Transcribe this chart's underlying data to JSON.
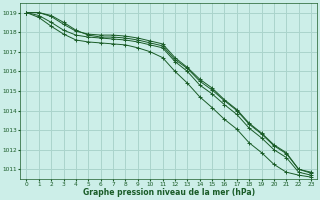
{
  "title": "Graphe pression niveau de la mer (hPa)",
  "background_color": "#cceee8",
  "grid_color": "#aad4cc",
  "line_color": "#1a5c28",
  "xlim": [
    -0.5,
    23.5
  ],
  "ylim": [
    1010.5,
    1019.5
  ],
  "xticks": [
    0,
    1,
    2,
    3,
    4,
    5,
    6,
    7,
    8,
    9,
    10,
    11,
    12,
    13,
    14,
    15,
    16,
    17,
    18,
    19,
    20,
    21,
    22,
    23
  ],
  "yticks": [
    1011,
    1012,
    1013,
    1014,
    1015,
    1016,
    1017,
    1018,
    1019
  ],
  "series": [
    [
      1019.0,
      1019.0,
      1018.85,
      1018.5,
      1018.1,
      1017.85,
      1017.75,
      1017.75,
      1017.7,
      1017.6,
      1017.45,
      1017.3,
      1016.6,
      1016.15,
      1015.5,
      1015.05,
      1014.5,
      1014.0,
      1013.3,
      1012.8,
      1012.2,
      1011.8,
      1011.0,
      1010.8
    ],
    [
      1019.0,
      1019.0,
      1018.8,
      1018.4,
      1018.05,
      1017.9,
      1017.85,
      1017.85,
      1017.8,
      1017.7,
      1017.55,
      1017.4,
      1016.7,
      1016.2,
      1015.6,
      1015.15,
      1014.55,
      1014.05,
      1013.35,
      1012.85,
      1012.25,
      1011.85,
      1011.0,
      1010.85
    ],
    [
      1019.0,
      1018.85,
      1018.5,
      1018.1,
      1017.85,
      1017.75,
      1017.7,
      1017.65,
      1017.6,
      1017.5,
      1017.35,
      1017.2,
      1016.5,
      1016.0,
      1015.3,
      1014.85,
      1014.3,
      1013.8,
      1013.1,
      1012.6,
      1012.0,
      1011.6,
      1010.85,
      1010.7
    ],
    [
      1019.0,
      1018.75,
      1018.3,
      1017.9,
      1017.6,
      1017.5,
      1017.45,
      1017.4,
      1017.35,
      1017.2,
      1017.0,
      1016.7,
      1016.0,
      1015.4,
      1014.7,
      1014.15,
      1013.55,
      1013.05,
      1012.35,
      1011.85,
      1011.25,
      1010.85,
      1010.7,
      1010.6
    ]
  ]
}
